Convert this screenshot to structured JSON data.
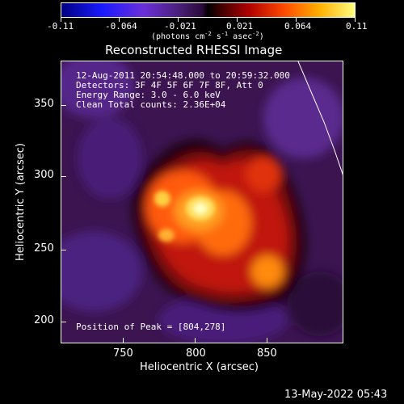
{
  "colorbar": {
    "ticks": [
      "-0.11",
      "-0.064",
      "-0.021",
      "0.021",
      "0.064",
      "0.11"
    ],
    "units": {
      "a": "(photons cm",
      "b": "-2",
      "c": " s",
      "d": "-1",
      "e": " asec",
      "f": "-2",
      "g": ")"
    }
  },
  "plot": {
    "title": "Reconstructed RHESSI Image",
    "xlabel": "Heliocentric X (arcsec)",
    "ylabel": "Heliocentric Y (arcsec)",
    "xticks": [
      "750",
      "800",
      "850"
    ],
    "yticks": [
      "350",
      "300",
      "250",
      "200"
    ],
    "info": [
      "12-Aug-2011 20:54:48.000 to 20:59:32.000",
      "Detectors: 3F 4F 5F 6F 7F 8F, Att 0",
      "Energy Range: 3.0 - 6.0 keV",
      "Clean    Total counts: 2.36E+04"
    ],
    "peak": "Position of Peak = [804,278]"
  },
  "footer": {
    "timestamp": "13-May-2022 05:43"
  },
  "colors": {
    "background": "#000000",
    "text": "#ffffff"
  }
}
